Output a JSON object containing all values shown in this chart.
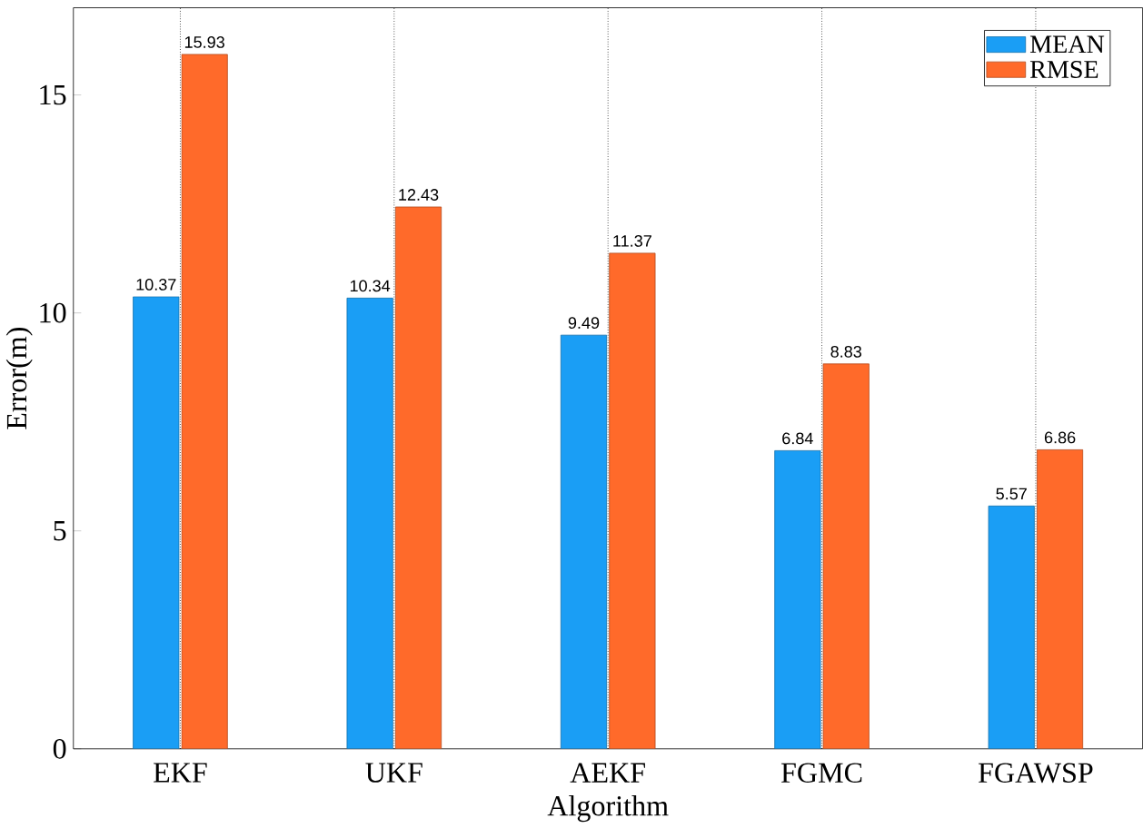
{
  "chart_data": {
    "type": "bar",
    "xlabel": "Algorithm",
    "ylabel": "Error(m)",
    "categories": [
      "EKF",
      "UKF",
      "AEKF",
      "FGMC",
      "FGAWSP"
    ],
    "series": [
      {
        "name": "MEAN",
        "color": "#1a9ef5",
        "values": [
          10.37,
          10.34,
          9.49,
          6.84,
          5.57
        ]
      },
      {
        "name": "RMSE",
        "color": "#ff6a2a",
        "values": [
          15.93,
          12.43,
          11.37,
          8.83,
          6.86
        ]
      }
    ],
    "ylim": [
      0,
      17
    ],
    "yticks": [
      0,
      5,
      10,
      15
    ],
    "grid": "x",
    "legend": "top right",
    "data_labels": true
  }
}
